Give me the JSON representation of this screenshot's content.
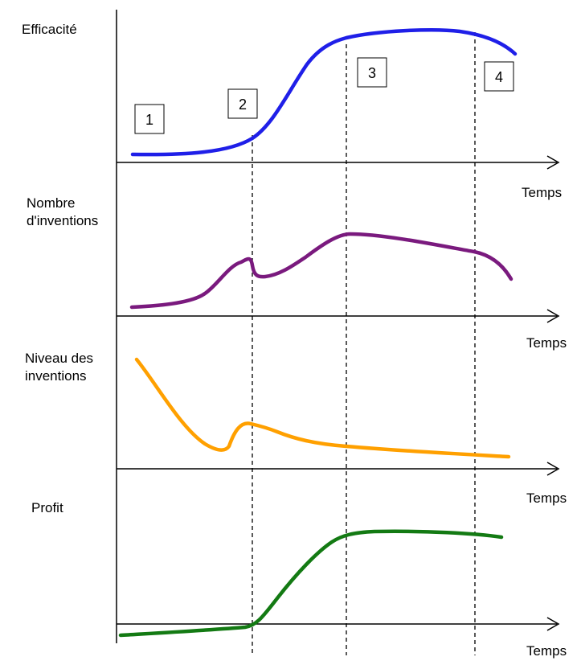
{
  "panels": [
    {
      "ylabel_lines": [
        "Efficacité"
      ],
      "xlabel": "Temps",
      "color": "#1f1fe8"
    },
    {
      "ylabel_lines": [
        "Nombre",
        "d'inventions"
      ],
      "xlabel": "Temps",
      "color": "#7a1a7e"
    },
    {
      "ylabel_lines": [
        "Niveau des",
        "inventions"
      ],
      "xlabel": "Temps",
      "color": "#ffa000"
    },
    {
      "ylabel_lines": [
        "Profit"
      ],
      "xlabel": "Temps",
      "color": "#137a13"
    }
  ],
  "stages": [
    "1",
    "2",
    "3",
    "4"
  ]
}
